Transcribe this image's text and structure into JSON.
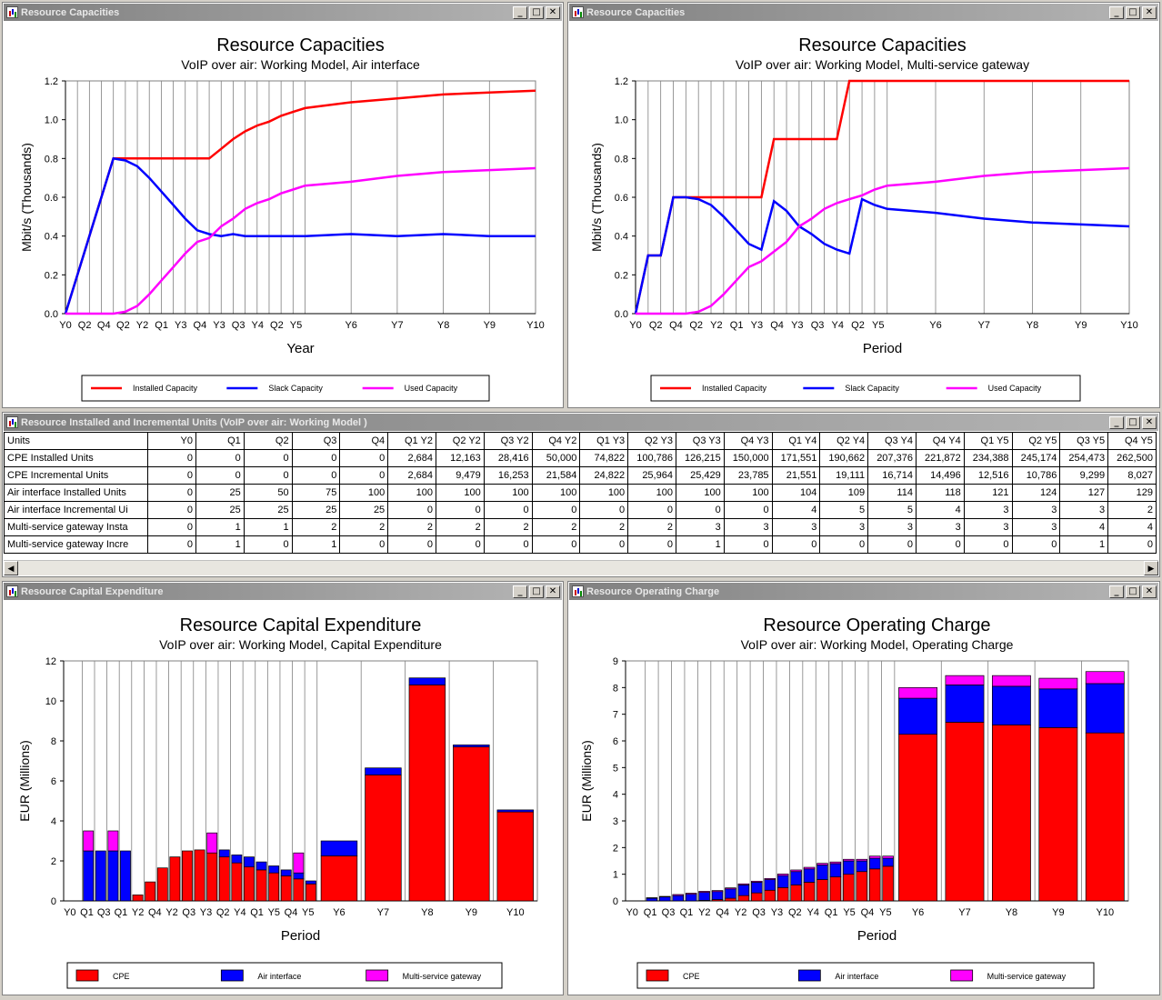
{
  "windows": {
    "cap_air": {
      "title": "Resource Capacities"
    },
    "cap_gw": {
      "title": "Resource Capacities"
    },
    "table": {
      "title": "Resource Installed and Incremental Units (VoIP over air:  Working Model )"
    },
    "capex": {
      "title": "Resource Capital Expenditure"
    },
    "opex": {
      "title": "Resource Operating Charge"
    }
  },
  "window_buttons": {
    "minimize": "_",
    "maximize": "□",
    "close": "✕"
  },
  "colors": {
    "red": "#ff0000",
    "blue": "#0000ff",
    "magenta": "#ff00ff",
    "title_gradient": "#808080"
  },
  "table": {
    "headers": [
      "Units",
      "Y0",
      "Q1",
      "Q2",
      "Q3",
      "Q4",
      "Q1 Y2",
      "Q2 Y2",
      "Q3 Y2",
      "Q4 Y2",
      "Q1 Y3",
      "Q2 Y3",
      "Q3 Y3",
      "Q4 Y3",
      "Q1 Y4",
      "Q2 Y4",
      "Q3 Y4",
      "Q4 Y4",
      "Q1 Y5",
      "Q2 Y5",
      "Q3 Y5",
      "Q4 Y5"
    ],
    "rows": [
      [
        "CPE Installed Units",
        "0",
        "0",
        "0",
        "0",
        "0",
        "2,684",
        "12,163",
        "28,416",
        "50,000",
        "74,822",
        "100,786",
        "126,215",
        "150,000",
        "171,551",
        "190,662",
        "207,376",
        "221,872",
        "234,388",
        "245,174",
        "254,473",
        "262,500"
      ],
      [
        "CPE Incremental Units",
        "0",
        "0",
        "0",
        "0",
        "0",
        "2,684",
        "9,479",
        "16,253",
        "21,584",
        "24,822",
        "25,964",
        "25,429",
        "23,785",
        "21,551",
        "19,111",
        "16,714",
        "14,496",
        "12,516",
        "10,786",
        "9,299",
        "8,027"
      ],
      [
        "Air interface Installed Units",
        "0",
        "25",
        "50",
        "75",
        "100",
        "100",
        "100",
        "100",
        "100",
        "100",
        "100",
        "100",
        "100",
        "104",
        "109",
        "114",
        "118",
        "121",
        "124",
        "127",
        "129"
      ],
      [
        "Air interface Incremental Ui",
        "0",
        "25",
        "25",
        "25",
        "25",
        "0",
        "0",
        "0",
        "0",
        "0",
        "0",
        "0",
        "0",
        "4",
        "5",
        "5",
        "4",
        "3",
        "3",
        "3",
        "2"
      ],
      [
        "Multi-service gateway Insta",
        "0",
        "1",
        "1",
        "2",
        "2",
        "2",
        "2",
        "2",
        "2",
        "2",
        "2",
        "3",
        "3",
        "3",
        "3",
        "3",
        "3",
        "3",
        "3",
        "4",
        "4"
      ],
      [
        "Multi-service gateway Incre",
        "0",
        "1",
        "0",
        "1",
        "0",
        "0",
        "0",
        "0",
        "0",
        "0",
        "0",
        "1",
        "0",
        "0",
        "0",
        "0",
        "0",
        "0",
        "0",
        "1",
        "0"
      ]
    ]
  },
  "chart_data": [
    {
      "id": "cap_air",
      "type": "line",
      "title": "Resource Capacities",
      "subtitle": "VoIP over air:  Working Model, Air interface",
      "xlabel": "Year",
      "ylabel": "Mbit/s  (Thousands)",
      "ylim": [
        0,
        1.2
      ],
      "yticks": [
        "0.0",
        "0.2",
        "0.4",
        "0.6",
        "0.8",
        "1.0",
        "1.2"
      ],
      "x": [
        "Y0",
        "Q1",
        "Q2",
        "Q3",
        "Q4",
        "Q1 Y2",
        "Q2 Y2",
        "Q3 Y2",
        "Q4 Y2",
        "Q1 Y3",
        "Q2 Y3",
        "Q3 Y3",
        "Q4 Y3",
        "Q1 Y4",
        "Q2 Y4",
        "Q3 Y4",
        "Q4 Y4",
        "Q1 Y5",
        "Q2 Y5",
        "Q3 Y5",
        "Q4 Y5",
        "Y6",
        "Y7",
        "Y8",
        "Y9",
        "Y10"
      ],
      "xtick_labels": [
        "Y0",
        "Q2",
        "Q4",
        "Q2 Y2",
        "Q4 Y2",
        "Q2 Y3",
        "Q4 Y3",
        "Q2 Y4",
        "Q4 Y4",
        "Q2 Y5",
        "Y6",
        "Y7",
        "Y8",
        "Y9",
        "Y10"
      ],
      "xtick_labels_shown": [
        "Y0",
        "Q2",
        "Q4",
        "Q2",
        "Y2",
        "Q1",
        "Y3",
        "Q4",
        "Y3",
        "Q3",
        "Y4",
        "Q2",
        "Y5",
        "Y6",
        "Y7",
        "Y8",
        "Y9",
        "Y10"
      ],
      "grid": true,
      "legend": "bottom",
      "series": [
        {
          "name": "Installed Capacity",
          "color": "#ff0000",
          "values": [
            0,
            0.2,
            0.4,
            0.6,
            0.8,
            0.8,
            0.8,
            0.8,
            0.8,
            0.8,
            0.8,
            0.8,
            0.8,
            0.85,
            0.9,
            0.94,
            0.97,
            0.99,
            1.02,
            1.04,
            1.06,
            1.09,
            1.11,
            1.13,
            1.14,
            1.15
          ]
        },
        {
          "name": "Slack Capacity",
          "color": "#0000ff",
          "values": [
            0,
            0.2,
            0.4,
            0.6,
            0.8,
            0.79,
            0.76,
            0.7,
            0.63,
            0.56,
            0.49,
            0.43,
            0.41,
            0.4,
            0.41,
            0.4,
            0.4,
            0.4,
            0.4,
            0.4,
            0.4,
            0.41,
            0.4,
            0.41,
            0.4,
            0.4
          ]
        },
        {
          "name": "Used Capacity",
          "color": "#ff00ff",
          "values": [
            0,
            0,
            0,
            0,
            0,
            0.01,
            0.04,
            0.1,
            0.17,
            0.24,
            0.31,
            0.37,
            0.39,
            0.45,
            0.49,
            0.54,
            0.57,
            0.59,
            0.62,
            0.64,
            0.66,
            0.68,
            0.71,
            0.73,
            0.74,
            0.75
          ]
        }
      ]
    },
    {
      "id": "cap_gw",
      "type": "line",
      "title": "Resource Capacities",
      "subtitle": "VoIP over air:  Working Model, Multi-service gateway",
      "xlabel": "Period",
      "ylabel": "Mbit/s  (Thousands)",
      "ylim": [
        0,
        1.2
      ],
      "yticks": [
        "0.0",
        "0.2",
        "0.4",
        "0.6",
        "0.8",
        "1.0",
        "1.2"
      ],
      "xtick_labels_shown": [
        "Y0",
        "Q2",
        "Q4",
        "Q2",
        "Y2",
        "Q1",
        "Y3",
        "Q4",
        "Y3",
        "Q3",
        "Y4",
        "Q2",
        "Y5",
        "Y6",
        "Y7",
        "Y8",
        "Y9",
        "Y10"
      ],
      "grid": true,
      "legend": "bottom",
      "series": [
        {
          "name": "Installed Capacity",
          "color": "#ff0000",
          "values": [
            0,
            0.3,
            0.3,
            0.6,
            0.6,
            0.6,
            0.6,
            0.6,
            0.6,
            0.6,
            0.6,
            0.9,
            0.9,
            0.9,
            0.9,
            0.9,
            0.9,
            1.2,
            1.2,
            1.2,
            1.2,
            1.2,
            1.2,
            1.2,
            1.2,
            1.2
          ]
        },
        {
          "name": "Slack Capacity",
          "color": "#0000ff",
          "values": [
            0,
            0.3,
            0.3,
            0.6,
            0.6,
            0.59,
            0.56,
            0.5,
            0.43,
            0.36,
            0.33,
            0.58,
            0.53,
            0.45,
            0.41,
            0.36,
            0.33,
            0.31,
            0.59,
            0.56,
            0.54,
            0.52,
            0.49,
            0.47,
            0.46,
            0.45
          ]
        },
        {
          "name": "Used Capacity",
          "color": "#ff00ff",
          "values": [
            0,
            0,
            0,
            0,
            0,
            0.01,
            0.04,
            0.1,
            0.17,
            0.24,
            0.27,
            0.32,
            0.37,
            0.45,
            0.49,
            0.54,
            0.57,
            0.59,
            0.61,
            0.64,
            0.66,
            0.68,
            0.71,
            0.73,
            0.74,
            0.75
          ]
        }
      ]
    },
    {
      "id": "capex",
      "type": "bar",
      "stacked": true,
      "title": "Resource Capital Expenditure",
      "subtitle": "VoIP over air:  Working Model, Capital Expenditure",
      "xlabel": "Period",
      "ylabel": "EUR  (Millions)",
      "ylim": [
        0,
        12
      ],
      "yticks": [
        "0",
        "2",
        "4",
        "6",
        "8",
        "10",
        "12"
      ],
      "xtick_labels_shown": [
        "Y0",
        "Q1",
        "Q3",
        "Q1",
        "Y2",
        "Q4",
        "Y2",
        "Q3",
        "Y3",
        "Q2",
        "Y4",
        "Q1",
        "Y5",
        "Q4",
        "Y5",
        "Y6",
        "Y7",
        "Y8",
        "Y9",
        "Y10"
      ],
      "grid": true,
      "legend": "bottom",
      "series": [
        {
          "name": "CPE",
          "color": "#ff0000",
          "values": [
            0,
            0,
            0,
            0,
            0,
            0.3,
            0.95,
            1.65,
            2.2,
            2.5,
            2.55,
            2.4,
            2.2,
            1.9,
            1.7,
            1.55,
            1.4,
            1.25,
            1.1,
            0.85,
            2.25,
            6.3,
            10.8,
            7.7,
            4.45
          ]
        },
        {
          "name": "Air interface",
          "color": "#0000ff",
          "values": [
            0,
            2.5,
            2.5,
            2.5,
            2.5,
            0,
            0,
            0,
            0,
            0,
            0,
            0,
            0.35,
            0.4,
            0.5,
            0.4,
            0.35,
            0.3,
            0.3,
            0.15,
            0.75,
            0.35,
            0.35,
            0.1,
            0.1
          ]
        },
        {
          "name": "Multi-service gateway",
          "color": "#ff00ff",
          "values": [
            0,
            1.0,
            0,
            1.0,
            0,
            0,
            0,
            0,
            0,
            0,
            0,
            1.0,
            0,
            0,
            0,
            0,
            0,
            0,
            1.0,
            0,
            0,
            0,
            0,
            0,
            0
          ]
        }
      ]
    },
    {
      "id": "opex",
      "type": "bar",
      "stacked": true,
      "title": "Resource Operating Charge",
      "subtitle": "VoIP over air:  Working Model, Operating Charge",
      "xlabel": "Period",
      "ylabel": "EUR  (Millions)",
      "ylim": [
        0,
        9
      ],
      "yticks": [
        "0",
        "1",
        "2",
        "3",
        "4",
        "5",
        "6",
        "7",
        "8",
        "9"
      ],
      "xtick_labels_shown": [
        "Y0",
        "Q1",
        "Q3",
        "Q1",
        "Y2",
        "Q4",
        "Y2",
        "Q3",
        "Y3",
        "Q2",
        "Y4",
        "Q1",
        "Y5",
        "Q4",
        "Y5",
        "Y6",
        "Y7",
        "Y8",
        "Y9",
        "Y10"
      ],
      "grid": true,
      "legend": "bottom",
      "series": [
        {
          "name": "CPE",
          "color": "#ff0000",
          "values": [
            0,
            0,
            0,
            0,
            0,
            0.02,
            0.05,
            0.1,
            0.2,
            0.3,
            0.4,
            0.5,
            0.6,
            0.7,
            0.8,
            0.9,
            1.0,
            1.1,
            1.2,
            1.3,
            6.25,
            6.7,
            6.6,
            6.5,
            6.3
          ]
        },
        {
          "name": "Air interface",
          "color": "#0000ff",
          "values": [
            0,
            0.1,
            0.15,
            0.2,
            0.25,
            0.3,
            0.3,
            0.35,
            0.4,
            0.4,
            0.4,
            0.45,
            0.5,
            0.5,
            0.55,
            0.5,
            0.5,
            0.4,
            0.4,
            0.3,
            1.35,
            1.4,
            1.45,
            1.45,
            1.85
          ]
        },
        {
          "name": "Multi-service gateway",
          "color": "#ff00ff",
          "values": [
            0,
            0.02,
            0.02,
            0.04,
            0.04,
            0.04,
            0.04,
            0.04,
            0.04,
            0.04,
            0.04,
            0.06,
            0.06,
            0.06,
            0.06,
            0.06,
            0.06,
            0.06,
            0.08,
            0.08,
            0.4,
            0.35,
            0.4,
            0.4,
            0.45
          ]
        }
      ]
    }
  ]
}
